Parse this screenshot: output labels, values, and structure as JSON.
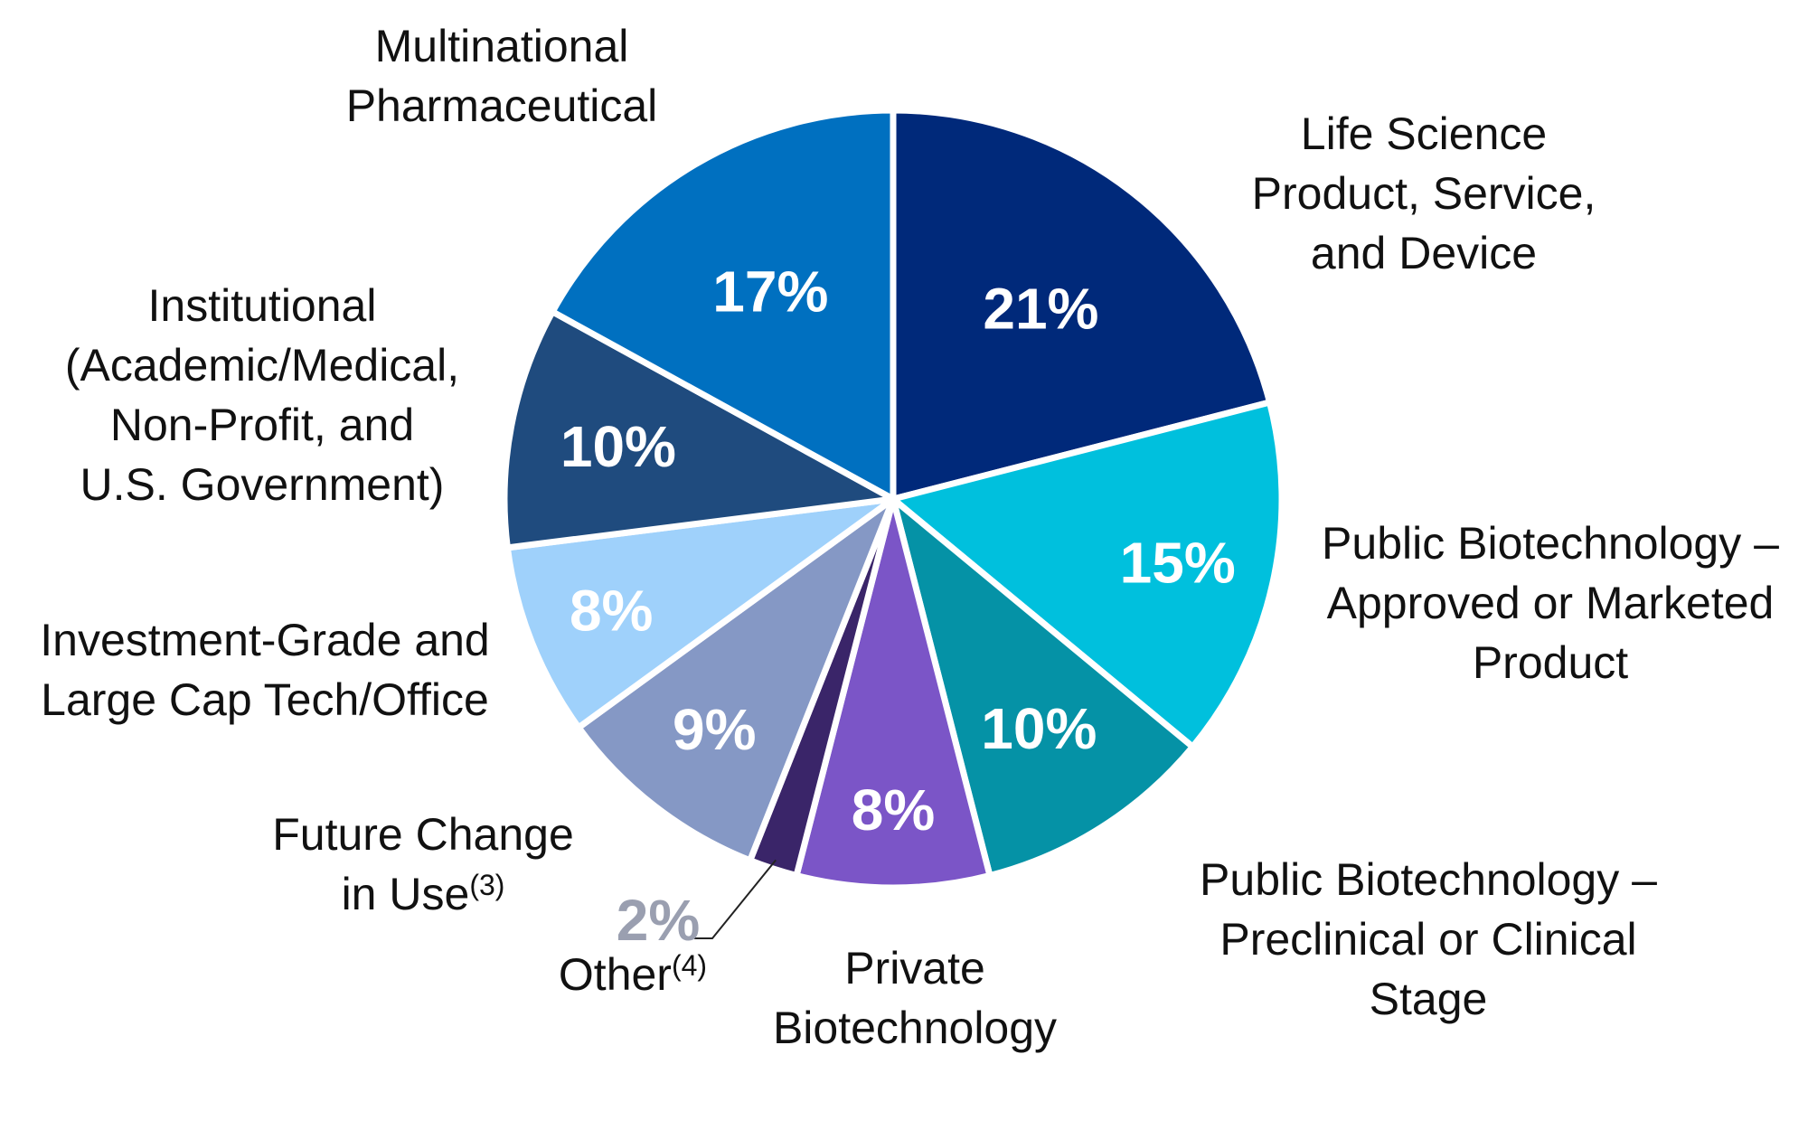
{
  "chart_data": {
    "type": "pie",
    "title": "",
    "slices": [
      {
        "label_lines": [
          "Life Science",
          "Product, Service,",
          "and Device"
        ],
        "value": 21,
        "pct_label": "21%",
        "color": "#00297a"
      },
      {
        "label_lines": [
          "Public Biotechnology –",
          "Approved or Marketed",
          "Product"
        ],
        "value": 15,
        "pct_label": "15%",
        "color": "#00c0dd"
      },
      {
        "label_lines": [
          "Public Biotechnology –",
          "Preclinical or Clinical",
          "Stage"
        ],
        "value": 10,
        "pct_label": "10%",
        "color": "#0592a6"
      },
      {
        "label_lines": [
          "Private",
          "Biotechnology"
        ],
        "value": 8,
        "pct_label": "8%",
        "color": "#7b55c7"
      },
      {
        "label_lines": [
          "Other"
        ],
        "superscript": "(4)",
        "value": 2,
        "pct_label": "2%",
        "color": "#3a2569"
      },
      {
        "label_lines": [
          "Future Change",
          "in Use"
        ],
        "superscript": "(3)",
        "value": 9,
        "pct_label": "9%",
        "color": "#8598c5"
      },
      {
        "label_lines": [
          "Investment-Grade and",
          "Large Cap Tech/Office"
        ],
        "value": 8,
        "pct_label": "8%",
        "color": "#9fd1fb"
      },
      {
        "label_lines": [
          "Institutional",
          "(Academic/Medical,",
          "Non-Profit, and",
          "U.S. Government)"
        ],
        "value": 10,
        "pct_label": "10%",
        "color": "#1f4b7e"
      },
      {
        "label_lines": [
          "Multinational",
          "Pharmaceutical"
        ],
        "value": 17,
        "pct_label": "17%",
        "color": "#0070c0"
      }
    ]
  }
}
